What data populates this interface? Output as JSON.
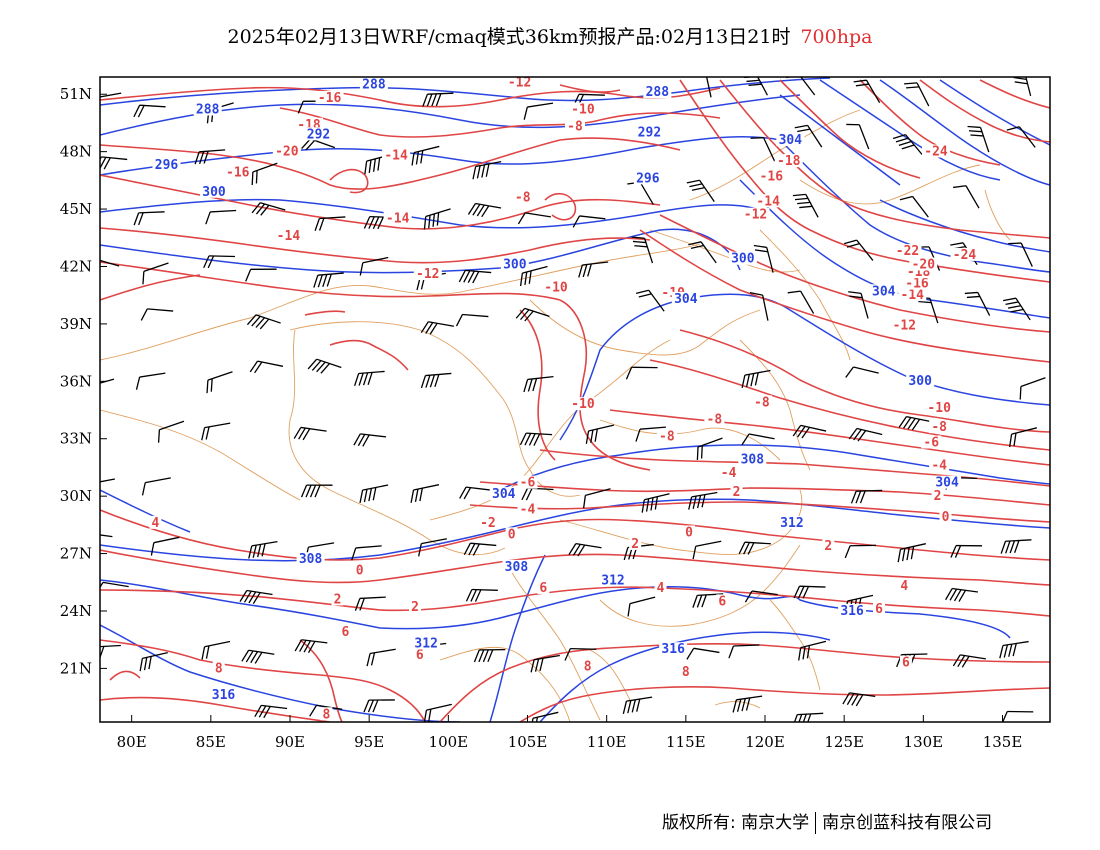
{
  "title": {
    "text": "2025年02月13日WRF/cmaq模式36km预报产品:02月13日21时",
    "level": "700hpa",
    "level_color": "#e03030"
  },
  "axes": {
    "lon_labels": [
      "80E",
      "85E",
      "90E",
      "95E",
      "100E",
      "105E",
      "110E",
      "115E",
      "120E",
      "125E",
      "130E",
      "135E"
    ],
    "lon_values": [
      80,
      85,
      90,
      95,
      100,
      105,
      110,
      115,
      120,
      125,
      130,
      135
    ],
    "lat_labels": [
      "51N",
      "48N",
      "45N",
      "42N",
      "39N",
      "36N",
      "33N",
      "30N",
      "27N",
      "24N",
      "21N"
    ],
    "lat_values": [
      51,
      48,
      45,
      42,
      39,
      36,
      33,
      30,
      27,
      24,
      21
    ],
    "lon_range": [
      78,
      138
    ],
    "lat_range": [
      18.2,
      51.9
    ]
  },
  "colors": {
    "temperature": "#e04545",
    "height": "#2a44e0",
    "boundaries": "#e0a060",
    "wind": "#000000"
  },
  "contour_labels": {
    "temperature": [
      {
        "text": "-16",
        "lon": 92.5,
        "lat": 50.7
      },
      {
        "text": "-12",
        "lon": 104.5,
        "lat": 51.5
      },
      {
        "text": "-10",
        "lon": 108.5,
        "lat": 50.1
      },
      {
        "text": "-8",
        "lon": 108.0,
        "lat": 49.2
      },
      {
        "text": "-18",
        "lon": 91.2,
        "lat": 49.3
      },
      {
        "text": "-20",
        "lon": 89.8,
        "lat": 47.9
      },
      {
        "text": "-14",
        "lon": 96.7,
        "lat": 47.7
      },
      {
        "text": "-16",
        "lon": 86.7,
        "lat": 46.8
      },
      {
        "text": "-8",
        "lon": 104.7,
        "lat": 45.5
      },
      {
        "text": "-14",
        "lon": 96.8,
        "lat": 44.4
      },
      {
        "text": "-14",
        "lon": 89.9,
        "lat": 43.5
      },
      {
        "text": "-12",
        "lon": 98.7,
        "lat": 41.5
      },
      {
        "text": "-10",
        "lon": 106.8,
        "lat": 40.8
      },
      {
        "text": "-10",
        "lon": 114.2,
        "lat": 40.5
      },
      {
        "text": "-10",
        "lon": 108.5,
        "lat": 34.7
      },
      {
        "text": "-8",
        "lon": 116.8,
        "lat": 33.9
      },
      {
        "text": "-8",
        "lon": 119.8,
        "lat": 34.8
      },
      {
        "text": "-8",
        "lon": 113.8,
        "lat": 33.0
      },
      {
        "text": "-4",
        "lon": 117.7,
        "lat": 31.1
      },
      {
        "text": "-6",
        "lon": 105.0,
        "lat": 30.6
      },
      {
        "text": "-4",
        "lon": 105.0,
        "lat": 29.2
      },
      {
        "text": "-2",
        "lon": 102.5,
        "lat": 28.5
      },
      {
        "text": "0",
        "lon": 104.0,
        "lat": 27.9
      },
      {
        "text": "4",
        "lon": 81.5,
        "lat": 28.5
      },
      {
        "text": "0",
        "lon": 94.4,
        "lat": 26.0
      },
      {
        "text": "2",
        "lon": 93.0,
        "lat": 24.5
      },
      {
        "text": "2",
        "lon": 97.9,
        "lat": 24.1
      },
      {
        "text": "6",
        "lon": 93.5,
        "lat": 22.8
      },
      {
        "text": "6",
        "lon": 98.2,
        "lat": 21.6
      },
      {
        "text": "8",
        "lon": 85.5,
        "lat": 20.9
      },
      {
        "text": "8",
        "lon": 92.3,
        "lat": 18.5
      },
      {
        "text": "6",
        "lon": 106.0,
        "lat": 25.1
      },
      {
        "text": "4",
        "lon": 113.4,
        "lat": 25.1
      },
      {
        "text": "6",
        "lon": 117.3,
        "lat": 24.4
      },
      {
        "text": "6",
        "lon": 127.2,
        "lat": 24.0
      },
      {
        "text": "4",
        "lon": 128.8,
        "lat": 25.2
      },
      {
        "text": "6",
        "lon": 128.9,
        "lat": 21.2
      },
      {
        "text": "8",
        "lon": 108.8,
        "lat": 21.0
      },
      {
        "text": "8",
        "lon": 115.0,
        "lat": 20.7
      },
      {
        "text": "2",
        "lon": 111.8,
        "lat": 27.4
      },
      {
        "text": "0",
        "lon": 115.2,
        "lat": 28.0
      },
      {
        "text": "2",
        "lon": 124.0,
        "lat": 27.3
      },
      {
        "text": "2",
        "lon": 118.2,
        "lat": 30.1
      },
      {
        "text": "0",
        "lon": 131.4,
        "lat": 28.8
      },
      {
        "text": "2",
        "lon": 130.9,
        "lat": 29.9
      },
      {
        "text": "-4",
        "lon": 131.0,
        "lat": 31.5
      },
      {
        "text": "-6",
        "lon": 130.5,
        "lat": 32.7
      },
      {
        "text": "-8",
        "lon": 131.0,
        "lat": 33.5
      },
      {
        "text": "-10",
        "lon": 131.0,
        "lat": 34.5
      },
      {
        "text": "-12",
        "lon": 128.8,
        "lat": 38.8
      },
      {
        "text": "-14",
        "lon": 129.3,
        "lat": 40.4
      },
      {
        "text": "-16",
        "lon": 129.6,
        "lat": 41.0
      },
      {
        "text": "-18",
        "lon": 129.7,
        "lat": 41.6
      },
      {
        "text": "-20",
        "lon": 130.0,
        "lat": 42.0
      },
      {
        "text": "-22",
        "lon": 129.0,
        "lat": 42.7
      },
      {
        "text": "-24",
        "lon": 132.6,
        "lat": 42.5
      },
      {
        "text": "-24",
        "lon": 130.8,
        "lat": 47.9
      },
      {
        "text": "-18",
        "lon": 121.5,
        "lat": 47.4
      },
      {
        "text": "-16",
        "lon": 120.4,
        "lat": 46.6
      },
      {
        "text": "-14",
        "lon": 120.2,
        "lat": 45.3
      },
      {
        "text": "-12",
        "lon": 119.4,
        "lat": 44.6
      }
    ],
    "height": [
      {
        "text": "288",
        "lon": 95.3,
        "lat": 51.4
      },
      {
        "text": "288",
        "lon": 84.8,
        "lat": 50.1
      },
      {
        "text": "288",
        "lon": 113.2,
        "lat": 51.0
      },
      {
        "text": "292",
        "lon": 112.7,
        "lat": 48.9
      },
      {
        "text": "292",
        "lon": 91.8,
        "lat": 48.8
      },
      {
        "text": "296",
        "lon": 82.2,
        "lat": 47.2
      },
      {
        "text": "296",
        "lon": 112.6,
        "lat": 46.5
      },
      {
        "text": "300",
        "lon": 85.2,
        "lat": 45.8
      },
      {
        "text": "300",
        "lon": 104.2,
        "lat": 42.0
      },
      {
        "text": "300",
        "lon": 118.6,
        "lat": 42.3
      },
      {
        "text": "304",
        "lon": 115.0,
        "lat": 40.2
      },
      {
        "text": "304",
        "lon": 121.6,
        "lat": 48.5
      },
      {
        "text": "304",
        "lon": 127.5,
        "lat": 40.6
      },
      {
        "text": "300",
        "lon": 129.8,
        "lat": 35.9
      },
      {
        "text": "304",
        "lon": 103.5,
        "lat": 30.0
      },
      {
        "text": "308",
        "lon": 119.2,
        "lat": 31.8
      },
      {
        "text": "308",
        "lon": 91.3,
        "lat": 26.6
      },
      {
        "text": "308",
        "lon": 104.3,
        "lat": 26.2
      },
      {
        "text": "312",
        "lon": 110.4,
        "lat": 25.5
      },
      {
        "text": "312",
        "lon": 121.7,
        "lat": 28.5
      },
      {
        "text": "312",
        "lon": 98.6,
        "lat": 22.2
      },
      {
        "text": "316",
        "lon": 125.5,
        "lat": 23.9
      },
      {
        "text": "316",
        "lon": 114.2,
        "lat": 21.9
      },
      {
        "text": "316",
        "lon": 85.8,
        "lat": 19.5
      },
      {
        "text": "304",
        "lon": 131.5,
        "lat": 30.6
      }
    ]
  },
  "credits": {
    "left": "版权所有: 南京大学",
    "right": "南京创蓝科技有限公司"
  }
}
